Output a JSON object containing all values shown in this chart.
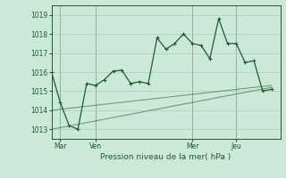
{
  "background_color": "#cce8d8",
  "grid_color": "#aaceba",
  "line_color": "#1a5e2a",
  "ylim": [
    1012.5,
    1019.5
  ],
  "ylabel_ticks": [
    1013,
    1014,
    1015,
    1016,
    1017,
    1018,
    1019
  ],
  "xlabel": "Pression niveau de la mer( hPa )",
  "x_tick_labels": [
    "Mar",
    "Ven",
    "Mer",
    "Jeu"
  ],
  "x_tick_positions": [
    1,
    5,
    16,
    21
  ],
  "x_vlines": [
    1,
    5,
    16,
    21
  ],
  "xlim": [
    0,
    26
  ],
  "series_main": {
    "x": [
      0,
      1,
      2,
      3,
      4,
      5,
      6,
      7,
      8,
      9,
      10,
      11,
      12,
      13,
      14,
      15,
      16,
      17,
      18,
      19,
      20,
      21,
      22,
      23,
      24,
      25
    ],
    "y": [
      1016.0,
      1014.4,
      1013.2,
      1013.0,
      1015.4,
      1015.3,
      1015.6,
      1016.05,
      1016.1,
      1015.4,
      1015.5,
      1015.4,
      1017.8,
      1017.2,
      1017.5,
      1018.0,
      1017.5,
      1017.4,
      1016.7,
      1018.8,
      1017.5,
      1017.5,
      1016.5,
      1016.6,
      1015.0,
      1015.1
    ]
  },
  "series_trend1": {
    "x": [
      0,
      25
    ],
    "y": [
      1013.0,
      1015.2
    ]
  },
  "series_trend2": {
    "x": [
      0,
      25
    ],
    "y": [
      1014.0,
      1015.3
    ]
  },
  "figsize": [
    3.2,
    2.0
  ],
  "dpi": 100
}
